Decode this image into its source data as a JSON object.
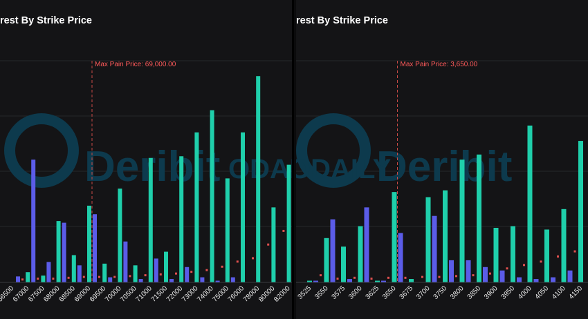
{
  "colors": {
    "calls": "#1fcfab",
    "puts": "#5b5ce8",
    "pain": "#e0504f",
    "grid": "#26272b"
  },
  "watermark": {
    "brand": "Deribit",
    "stamp": "ODAILY"
  },
  "chart_data": [
    {
      "type": "bar",
      "title": "rest By Strike Price",
      "max_pain_label": "Max Pain Price: 69,000.00",
      "max_pain_strike": "69000",
      "categories": [
        "66500",
        "67000",
        "67500",
        "68000",
        "68500",
        "69000",
        "69500",
        "70000",
        "70500",
        "71000",
        "71500",
        "72000",
        "73000",
        "74000",
        "75000",
        "76000",
        "78000",
        "80000",
        "82000"
      ],
      "series": [
        {
          "values": [
            0,
            0.6,
            0.4,
            3.6,
            1.6,
            4.5,
            1.1,
            5.5,
            1.0,
            7.3,
            1.8,
            7.4,
            8.8,
            10.1,
            6.1,
            8.8,
            12.1,
            4.4,
            6.9
          ]
        },
        {
          "values": [
            0.35,
            7.2,
            1.2,
            3.5,
            1.0,
            4.0,
            0.3,
            2.4,
            0.2,
            1.4,
            0.2,
            0.9,
            0.3,
            0.1,
            0.3,
            0,
            0,
            0,
            0
          ]
        },
        {
          "values": [
            0.15,
            0.2,
            0.2,
            0.25,
            0.3,
            0.3,
            0.3,
            0.35,
            0.4,
            0.45,
            0.5,
            0.6,
            0.7,
            0.9,
            1.2,
            1.4,
            2.2,
            3.0,
            3.9
          ]
        }
      ]
    },
    {
      "type": "bar",
      "title": "rest By Strike Price",
      "max_pain_label": "Max Pain Price: 3,650.00",
      "max_pain_strike": "3650",
      "categories": [
        "3525",
        "3550",
        "3575",
        "3600",
        "3625",
        "3650",
        "3675",
        "3700",
        "3750",
        "3800",
        "3850",
        "3900",
        "3950",
        "4000",
        "4050",
        "4100",
        "4150"
      ],
      "series": [
        {
          "values": [
            0.1,
            2.6,
            2.1,
            3.3,
            0.1,
            5.3,
            0.2,
            5.0,
            5.4,
            7.2,
            7.5,
            3.2,
            3.3,
            9.2,
            3.1,
            4.3,
            8.3
          ]
        },
        {
          "values": [
            0.1,
            3.7,
            0.2,
            4.4,
            0.1,
            2.9,
            0,
            3.9,
            1.3,
            1.3,
            0.9,
            0.7,
            0.3,
            0.2,
            0.3,
            0.7,
            0
          ]
        },
        {
          "values": [
            0.4,
            0.2,
            0.25,
            0.2,
            0.25,
            0.25,
            0.3,
            0.3,
            0.35,
            0.4,
            0.5,
            0.8,
            1.0,
            1.2,
            1.5,
            1.8,
            2.2
          ]
        }
      ]
    }
  ]
}
